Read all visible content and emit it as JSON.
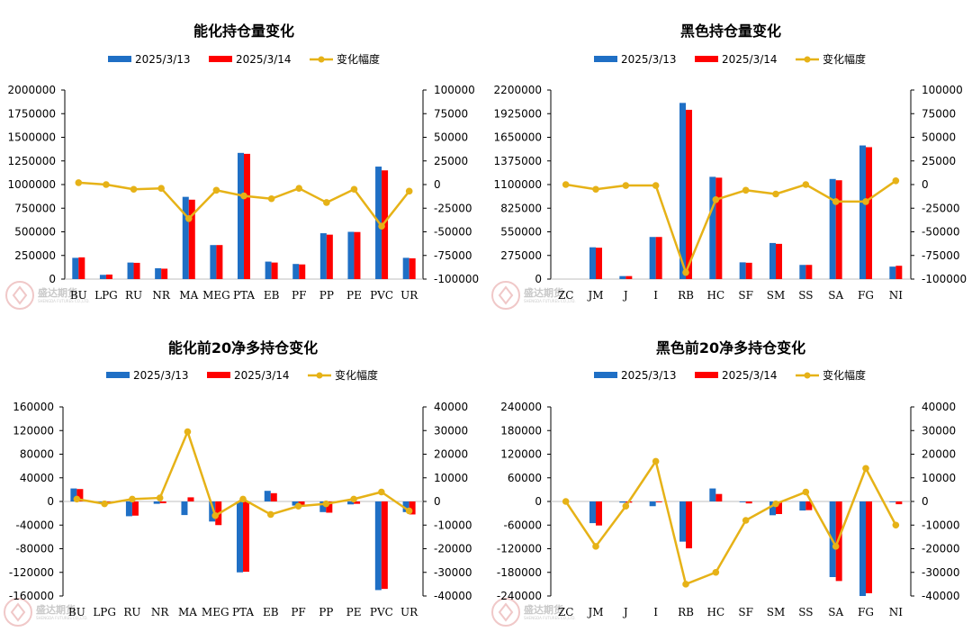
{
  "watermark": {
    "brand": "盛达期货",
    "sub": "SHENGDA FUTURES CO.,LTD."
  },
  "colors": {
    "s1": "#1f6fc5",
    "s2": "#ff0000",
    "line": "#e6b217"
  },
  "chart_data": [
    {
      "type": "bar",
      "title": "能化持仓量变化",
      "categories": [
        "BU",
        "LPG",
        "RU",
        "NR",
        "MA",
        "MEG",
        "PTA",
        "EB",
        "PF",
        "PP",
        "PE",
        "PVC",
        "UR"
      ],
      "series": [
        {
          "name": "2025/3/13",
          "values": [
            225000,
            45000,
            175000,
            115000,
            870000,
            360000,
            1335000,
            185000,
            160000,
            485000,
            500000,
            1190000,
            225000
          ]
        },
        {
          "name": "2025/3/14",
          "values": [
            230000,
            48000,
            172000,
            110000,
            840000,
            360000,
            1325000,
            175000,
            155000,
            470000,
            498000,
            1150000,
            220000
          ]
        }
      ],
      "line": {
        "name": "变化幅度",
        "values": [
          2000,
          0,
          -5000,
          -4000,
          -36000,
          -6000,
          -12000,
          -15000,
          -4000,
          -19000,
          -5000,
          -44000,
          -7000
        ]
      },
      "ylim_left": [
        0,
        2000000
      ],
      "ytick_step_left": 250000,
      "yticks_left": [
        "0",
        "250000",
        "500000",
        "750000",
        "1000000",
        "1250000",
        "1500000",
        "1750000",
        "2000000"
      ],
      "ylim_right": [
        -100000,
        100000
      ],
      "ytick_step_right": 25000,
      "yticks_right": [
        "-100000",
        "-75000",
        "-50000",
        "-25000",
        "0",
        "25000",
        "50000",
        "75000",
        "100000"
      ],
      "legend": "top"
    },
    {
      "type": "bar",
      "title": "黑色持仓量变化",
      "categories": [
        "ZC",
        "JM",
        "J",
        "I",
        "RB",
        "HC",
        "SF",
        "SM",
        "SS",
        "SA",
        "FG",
        "NI"
      ],
      "series": [
        {
          "name": "2025/3/13",
          "values": [
            0,
            370000,
            35000,
            490000,
            2050000,
            1190000,
            195000,
            420000,
            165000,
            1165000,
            1555000,
            145000
          ],
          "_": null
        },
        {
          "name": "2025/3/14",
          "values": [
            0,
            365000,
            35000,
            490000,
            1970000,
            1180000,
            190000,
            410000,
            165000,
            1150000,
            1535000,
            155000
          ]
        }
      ],
      "line": {
        "name": "变化幅度",
        "values": [
          0,
          -5000,
          -1000,
          -1000,
          -93000,
          -16000,
          -6000,
          -10000,
          0,
          -18000,
          -18000,
          4000
        ]
      },
      "ylim_left": [
        0,
        2200000
      ],
      "ytick_step_left": 275000,
      "yticks_left": [
        "0",
        "275000",
        "550000",
        "825000",
        "1100000",
        "1375000",
        "1650000",
        "1925000",
        "2200000"
      ],
      "ylim_right": [
        -100000,
        100000
      ],
      "ytick_step_right": 25000,
      "yticks_right": [
        "-100000",
        "-75000",
        "-50000",
        "-25000",
        "0",
        "25000",
        "50000",
        "75000",
        "100000"
      ],
      "legend": "top"
    },
    {
      "type": "bar",
      "title": "能化前20净多持仓变化",
      "categories": [
        "BU",
        "LPG",
        "RU",
        "NR",
        "MA",
        "MEG",
        "PTA",
        "EB",
        "PF",
        "PP",
        "PE",
        "PVC",
        "UR"
      ],
      "series": [
        {
          "name": "2025/3/13",
          "values": [
            22000,
            -1000,
            -25000,
            -4000,
            -23000,
            -34000,
            -120000,
            18000,
            -7000,
            -18000,
            -5000,
            -150000,
            -18000
          ]
        },
        {
          "name": "2025/3/14",
          "values": [
            21000,
            -1000,
            -24000,
            -3000,
            7000,
            -40000,
            -119000,
            14000,
            -9000,
            -19000,
            -4000,
            -148000,
            -22000
          ]
        }
      ],
      "line": {
        "name": "变化幅度",
        "values": [
          1000,
          -1000,
          1000,
          1500,
          29500,
          -6000,
          1000,
          -5500,
          -2000,
          -1000,
          1000,
          4000,
          -4000
        ]
      },
      "ylim_left": [
        -160000,
        160000
      ],
      "ytick_step_left": 40000,
      "yticks_left": [
        "-160000",
        "-120000",
        "-80000",
        "-40000",
        "0",
        "40000",
        "80000",
        "120000",
        "160000"
      ],
      "ylim_right": [
        -40000,
        40000
      ],
      "ytick_step_right": 10000,
      "yticks_right": [
        "-40000",
        "-30000",
        "-20000",
        "-10000",
        "0",
        "10000",
        "20000",
        "30000",
        "40000"
      ],
      "legend": "top"
    },
    {
      "type": "bar",
      "title": "黑色前20净多持仓变化",
      "categories": [
        "ZC",
        "JM",
        "J",
        "I",
        "RB",
        "HC",
        "SF",
        "SM",
        "SS",
        "SA",
        "FG",
        "NI"
      ],
      "series": [
        {
          "name": "2025/3/13",
          "values": [
            0,
            -55000,
            -3000,
            -12000,
            -102000,
            33000,
            -2000,
            -35000,
            -23000,
            -192000,
            -240000,
            -1000
          ]
        },
        {
          "name": "2025/3/14",
          "values": [
            0,
            -61000,
            -3000,
            -2000,
            -119000,
            19000,
            -5000,
            -32000,
            -22000,
            -202000,
            -233000,
            -7000
          ]
        }
      ],
      "line": {
        "name": "变化幅度",
        "values": [
          0,
          -19000,
          -2000,
          17000,
          -35000,
          -30000,
          -8000,
          -1000,
          4000,
          -19000,
          14000,
          -10000
        ]
      },
      "ylim_left": [
        -240000,
        240000
      ],
      "ytick_step_left": 60000,
      "yticks_left": [
        "-240000",
        "-180000",
        "-120000",
        "-60000",
        "0",
        "60000",
        "120000",
        "180000",
        "240000"
      ],
      "ylim_right": [
        -40000,
        40000
      ],
      "ytick_step_right": 10000,
      "yticks_right": [
        "-40000",
        "-30000",
        "-20000",
        "-10000",
        "0",
        "10000",
        "20000",
        "30000",
        "40000"
      ],
      "legend": "top"
    }
  ]
}
